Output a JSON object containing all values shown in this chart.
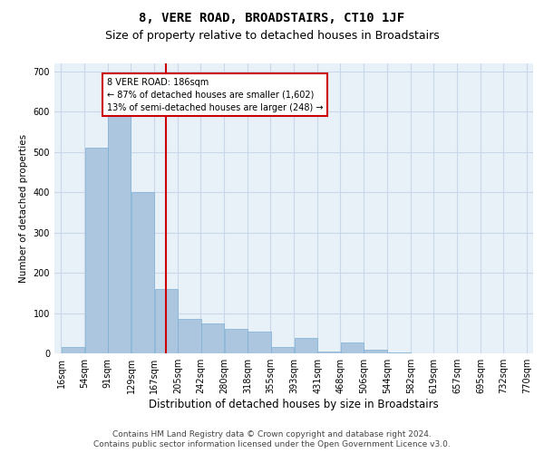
{
  "title": "8, VERE ROAD, BROADSTAIRS, CT10 1JF",
  "subtitle": "Size of property relative to detached houses in Broadstairs",
  "xlabel": "Distribution of detached houses by size in Broadstairs",
  "ylabel": "Number of detached properties",
  "bar_color": "#adc6e0",
  "bar_edge_color": "#7aafd4",
  "grid_color": "#c8d8e8",
  "background_color": "#e8f0f8",
  "vline_x": 186,
  "vline_color": "#cc0000",
  "annotation_text": "8 VERE ROAD: 186sqm\n← 87% of detached houses are smaller (1,602)\n13% of semi-detached houses are larger (248) →",
  "annotation_box_color": "white",
  "annotation_box_edge_color": "#cc0000",
  "bins_left": [
    16,
    54,
    91,
    129,
    167,
    205,
    242,
    280,
    318,
    355,
    393,
    431,
    468,
    506,
    544,
    582,
    619,
    657,
    695,
    732
  ],
  "bin_width": 38,
  "bar_heights": [
    15,
    510,
    590,
    400,
    160,
    85,
    75,
    60,
    55,
    15,
    38,
    5,
    28,
    8,
    2,
    0,
    0,
    0,
    0,
    0
  ],
  "xtick_labels": [
    "16sqm",
    "54sqm",
    "91sqm",
    "129sqm",
    "167sqm",
    "205sqm",
    "242sqm",
    "280sqm",
    "318sqm",
    "355sqm",
    "393sqm",
    "431sqm",
    "468sqm",
    "506sqm",
    "544sqm",
    "582sqm",
    "619sqm",
    "657sqm",
    "695sqm",
    "732sqm",
    "770sqm"
  ],
  "yticks": [
    0,
    100,
    200,
    300,
    400,
    500,
    600,
    700
  ],
  "ylim": [
    0,
    720
  ],
  "xlim": [
    5,
    780
  ],
  "footer1": "Contains HM Land Registry data © Crown copyright and database right 2024.",
  "footer2": "Contains public sector information licensed under the Open Government Licence v3.0.",
  "title_fontsize": 10,
  "subtitle_fontsize": 9,
  "tick_fontsize": 7,
  "xlabel_fontsize": 8.5,
  "ylabel_fontsize": 7.5,
  "footer_fontsize": 6.5
}
